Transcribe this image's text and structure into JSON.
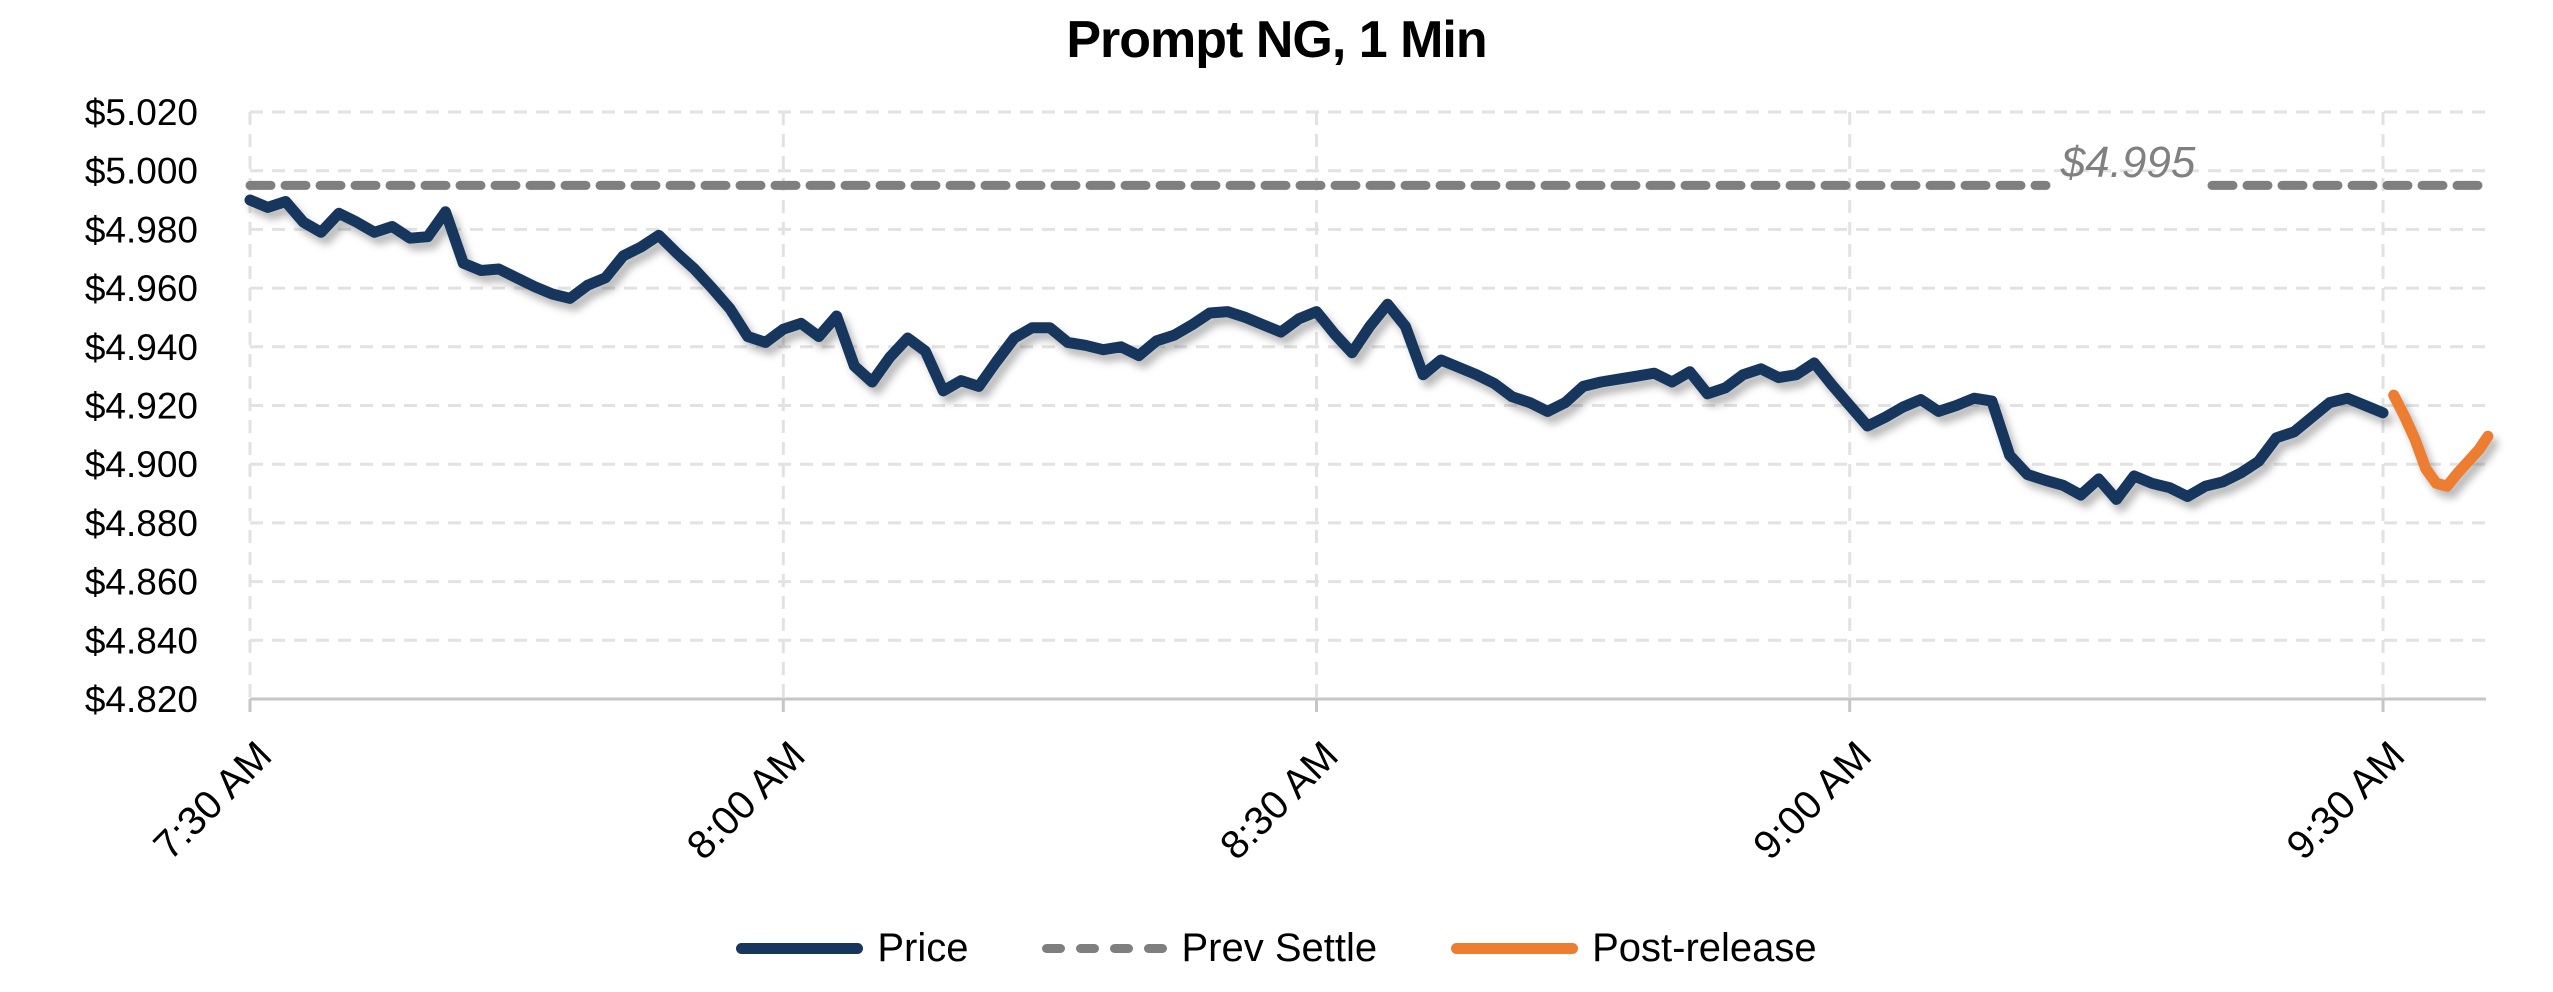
{
  "title": "Prompt NG, 1 Min",
  "annotation": {
    "text": "$4.995"
  },
  "legend": {
    "items": [
      {
        "label": "Price",
        "color": "#17365D",
        "style": "solid"
      },
      {
        "label": "Prev Settle",
        "color": "#7F7F7F",
        "style": "dashed"
      },
      {
        "label": "Post-release",
        "color": "#ED7D31",
        "style": "solid"
      }
    ]
  },
  "colors": {
    "price_line": "#17365D",
    "post_release_line": "#ED7D31",
    "prev_settle_line": "#7F7F7F",
    "gridline": "#E2E2E2",
    "axis_line": "#C6C6C6",
    "axis_text": "#000000",
    "annotation_text": "#808080",
    "background": "#FFFFFF"
  },
  "chart_data": {
    "type": "line",
    "title": "Prompt NG, 1 Min",
    "xlabel": "",
    "ylabel": "",
    "grid": "dashed horizontal and vertical gridlines",
    "legend_position": "bottom center",
    "x_axis": {
      "tick_labels": [
        "7:30 AM",
        "8:00 AM",
        "8:30 AM",
        "9:00 AM",
        "9:30 AM"
      ],
      "tick_minutes": [
        0,
        30,
        60,
        90,
        120
      ],
      "label_rotation_deg": 45
    },
    "y_axis": {
      "min": 4.82,
      "max": 5.02,
      "tick_step": 0.02,
      "tick_labels": [
        "$5.020",
        "$5.000",
        "$4.980",
        "$4.960",
        "$4.940",
        "$4.920",
        "$4.900",
        "$4.880",
        "$4.860",
        "$4.840",
        "$4.820"
      ],
      "tick_values": [
        5.02,
        5.0,
        4.98,
        4.96,
        4.94,
        4.92,
        4.9,
        4.88,
        4.86,
        4.84,
        4.82
      ]
    },
    "prev_settle": {
      "value": 4.995,
      "label": "$4.995",
      "label_gap_x": [
        2046,
        2212
      ]
    },
    "series": [
      {
        "name": "Price",
        "color": "#17365D",
        "style": "solid",
        "start_minute": 0,
        "step_minutes": 1,
        "values": [
          4.99,
          4.9875,
          4.9895,
          4.9825,
          4.979,
          4.9855,
          4.9825,
          4.979,
          4.981,
          4.977,
          4.9775,
          4.986,
          4.9685,
          4.966,
          4.9665,
          4.9635,
          4.9605,
          4.958,
          4.9565,
          4.961,
          4.9635,
          4.971,
          4.974,
          4.978,
          4.972,
          4.9665,
          4.96,
          4.953,
          4.9435,
          4.9415,
          4.946,
          4.948,
          4.9435,
          4.9505,
          4.9335,
          4.928,
          4.9365,
          4.943,
          4.9385,
          4.925,
          4.9285,
          4.9265,
          4.935,
          4.943,
          4.9465,
          4.9465,
          4.9415,
          4.9405,
          4.939,
          4.94,
          4.937,
          4.942,
          4.944,
          4.9475,
          4.9515,
          4.952,
          4.95,
          4.9475,
          4.945,
          4.9495,
          4.952,
          4.9445,
          4.938,
          4.947,
          4.9545,
          4.947,
          4.9305,
          4.9355,
          4.933,
          4.9305,
          4.9275,
          4.923,
          4.921,
          4.918,
          4.921,
          4.9265,
          4.928,
          4.929,
          4.93,
          4.931,
          4.928,
          4.9315,
          4.924,
          4.926,
          4.9305,
          4.9325,
          4.9295,
          4.9305,
          4.9345,
          4.927,
          4.92,
          4.913,
          4.916,
          4.9195,
          4.922,
          4.918,
          4.92,
          4.9225,
          4.9215,
          4.903,
          4.8965,
          4.8945,
          4.8928,
          4.8895,
          4.895,
          4.888,
          4.896,
          4.8935,
          4.892,
          4.889,
          4.8925,
          4.894,
          4.897,
          4.901,
          4.909,
          4.911,
          4.916,
          4.921,
          4.9225,
          4.92,
          4.9175
        ]
      },
      {
        "name": "Prev Settle",
        "color": "#7F7F7F",
        "style": "dashed",
        "value": 4.995
      },
      {
        "name": "Post-release",
        "color": "#ED7D31",
        "style": "solid",
        "points": [
          [
            120.6,
            4.9235
          ],
          [
            121.2,
            4.9165
          ],
          [
            121.8,
            4.9085
          ],
          [
            122.4,
            4.8985
          ],
          [
            123.0,
            4.8935
          ],
          [
            123.6,
            4.8925
          ],
          [
            124.2,
            4.897
          ],
          [
            124.8,
            4.901
          ],
          [
            125.4,
            4.905
          ],
          [
            125.9,
            4.9095
          ]
        ]
      }
    ]
  }
}
